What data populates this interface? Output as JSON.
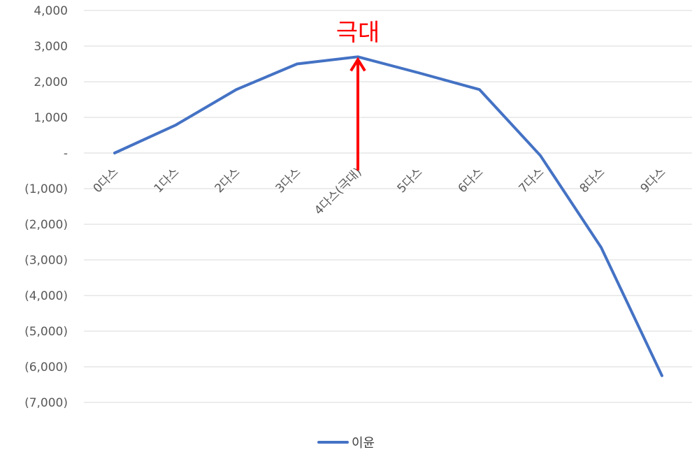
{
  "chart_data": {
    "type": "line",
    "title": "",
    "xlabel": "",
    "ylabel": "",
    "categories": [
      "0다스",
      "1다스",
      "2다스",
      "3다스",
      "4다스(극대)",
      "5다스",
      "6다스",
      "7다스",
      "8다스",
      "9다스"
    ],
    "series": [
      {
        "name": "이윤",
        "color": "#4472c4",
        "values": [
          0,
          780,
          1780,
          2500,
          2700,
          2250,
          1780,
          -70,
          -2650,
          -6250
        ]
      }
    ],
    "ylim": [
      -7000,
      4000
    ],
    "yticks": [
      {
        "value": 4000,
        "label": "4,000"
      },
      {
        "value": 3000,
        "label": "3,000"
      },
      {
        "value": 2000,
        "label": "2,000"
      },
      {
        "value": 1000,
        "label": "1,000"
      },
      {
        "value": 0,
        "label": "-"
      },
      {
        "value": -1000,
        "label": "(1,000)"
      },
      {
        "value": -2000,
        "label": "(2,000)"
      },
      {
        "value": -3000,
        "label": "(3,000)"
      },
      {
        "value": -4000,
        "label": "(4,000)"
      },
      {
        "value": -5000,
        "label": "(5,000)"
      },
      {
        "value": -6000,
        "label": "(6,000)"
      },
      {
        "value": -7000,
        "label": "(7,000)"
      }
    ],
    "grid": true,
    "legend_position": "bottom",
    "annotation": {
      "text": "극대",
      "category_index": 4,
      "color": "#ff0000"
    }
  }
}
